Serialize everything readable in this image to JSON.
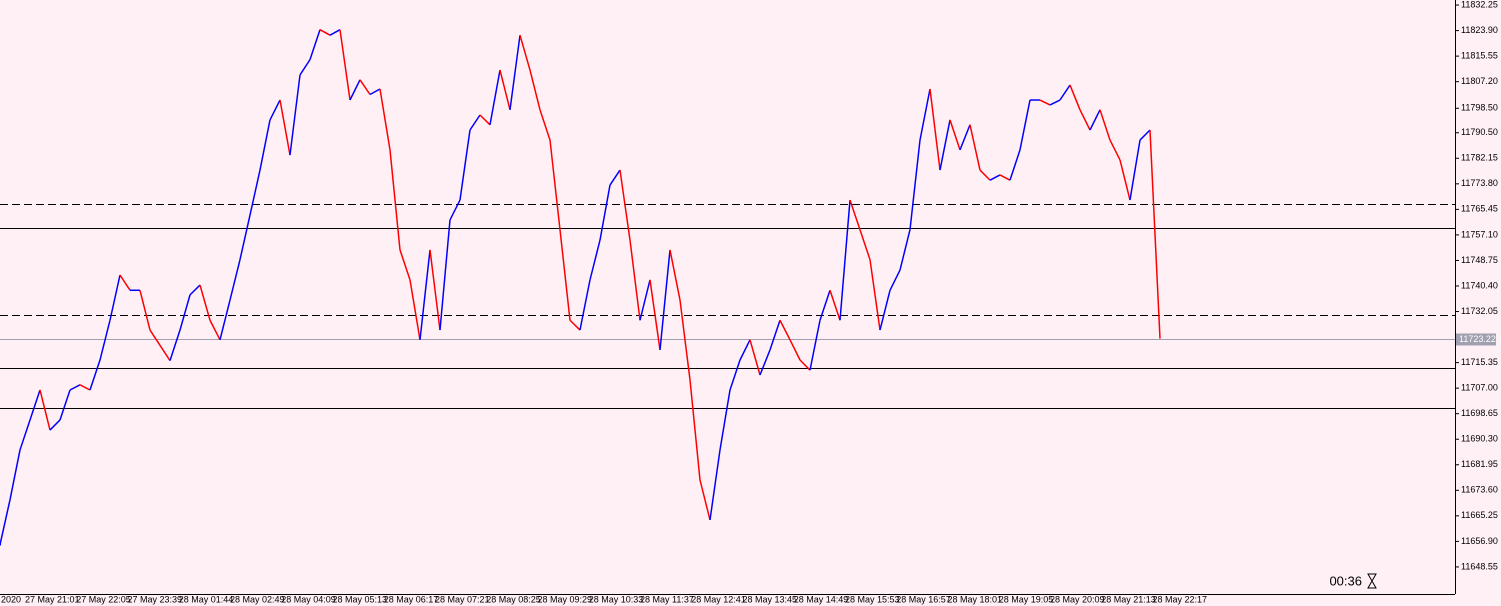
{
  "chart_data": {
    "type": "line",
    "x_labels": [
      "2020",
      "27 May 21:01",
      "27 May 22:05",
      "27 May 23:39",
      "28 May 01:44",
      "28 May 02:49",
      "28 May 04:09",
      "28 May 05:13",
      "28 May 06:17",
      "28 May 07:21",
      "28 May 08:25",
      "28 May 09:29",
      "28 May 10:33",
      "28 May 11:37",
      "28 May 12:41",
      "28 May 13:45",
      "28 May 14:49",
      "28 May 15:53",
      "28 May 16:57",
      "28 May 18:01",
      "28 May 19:05",
      "28 May 20:09",
      "28 May 21:13",
      "28 May 22:17"
    ],
    "values": [
      11655.8,
      11670.5,
      11686.8,
      11696.6,
      11706.4,
      11693.3,
      11696.6,
      11706.4,
      11708.1,
      11706.4,
      11716.2,
      11729.2,
      11744,
      11739,
      11739,
      11726,
      11721,
      11716,
      11726,
      11737.5,
      11740.7,
      11729.2,
      11722.8,
      11735.8,
      11749,
      11763.6,
      11778.3,
      11794.7,
      11801.2,
      11783.2,
      11809.4,
      11814.4,
      11824.2,
      11822.4,
      11824.2,
      11801.2,
      11807.8,
      11803,
      11804.8,
      11784.9,
      11752.2,
      11742.4,
      11722.8,
      11752.2,
      11726,
      11762,
      11768.5,
      11791.4,
      11796.3,
      11793.1,
      11811,
      11798,
      11822.4,
      11811,
      11798,
      11788.1,
      11758.8,
      11729.2,
      11726,
      11742.4,
      11755.4,
      11773.4,
      11778.3,
      11755.4,
      11729.2,
      11742.4,
      11719.5,
      11752.2,
      11735.8,
      11709.7,
      11677,
      11663.9,
      11686.8,
      11706.4,
      11716.2,
      11722.8,
      11711.3,
      11719.5,
      11729.2,
      11722.8,
      11716.2,
      11712.9,
      11729.2,
      11739,
      11729.2,
      11768.5,
      11758.8,
      11749,
      11726,
      11739,
      11745.6,
      11758.8,
      11788.1,
      11804.8,
      11778.3,
      11794.7,
      11784.9,
      11793.1,
      11778.3,
      11775,
      11776.7,
      11775,
      11784.9,
      11801.2,
      11801.2,
      11799.6,
      11801.2,
      11806.1,
      11798,
      11791.4,
      11798,
      11788.1,
      11781.6,
      11768.5,
      11788.1,
      11791.4,
      11723.22
    ],
    "up_color": "#0000ff",
    "down_color": "#ff0000",
    "ylim": [
      11639.7,
      11833.9
    ],
    "yticks": [
      11832.25,
      {
        "value": 11823.9,
        "label": "11823.90"
      },
      11815.55,
      {
        "value": 11807.2,
        "label": "11807.20"
      },
      {
        "value": 11798.5,
        "label": "11798.50"
      },
      {
        "value": 11790.5,
        "label": "11790.50"
      },
      11782.15,
      {
        "value": 11773.8,
        "label": "11773.80"
      },
      11765.45,
      {
        "value": 11757.1,
        "label": "11757.10"
      },
      11748.75,
      {
        "value": 11740.4,
        "label": "11740.40"
      },
      11732.05,
      11715.35,
      {
        "value": 11707,
        "label": "11707.00"
      },
      11698.65,
      {
        "value": 11690.3,
        "label": "11690.30"
      },
      11681.95,
      {
        "value": 11673.6,
        "label": "11673.60"
      },
      11665.25,
      {
        "value": 11656.9,
        "label": "11656.90"
      },
      11648.55
    ],
    "levels": [
      {
        "value": 11767.2,
        "style": "dashed"
      },
      {
        "value": 11759.4,
        "style": "solid"
      },
      {
        "value": 11731,
        "style": "dashed"
      },
      {
        "value": 11713.6,
        "style": "solid"
      },
      {
        "value": 11700.55,
        "style": "solid"
      }
    ],
    "timer": "00:36"
  }
}
